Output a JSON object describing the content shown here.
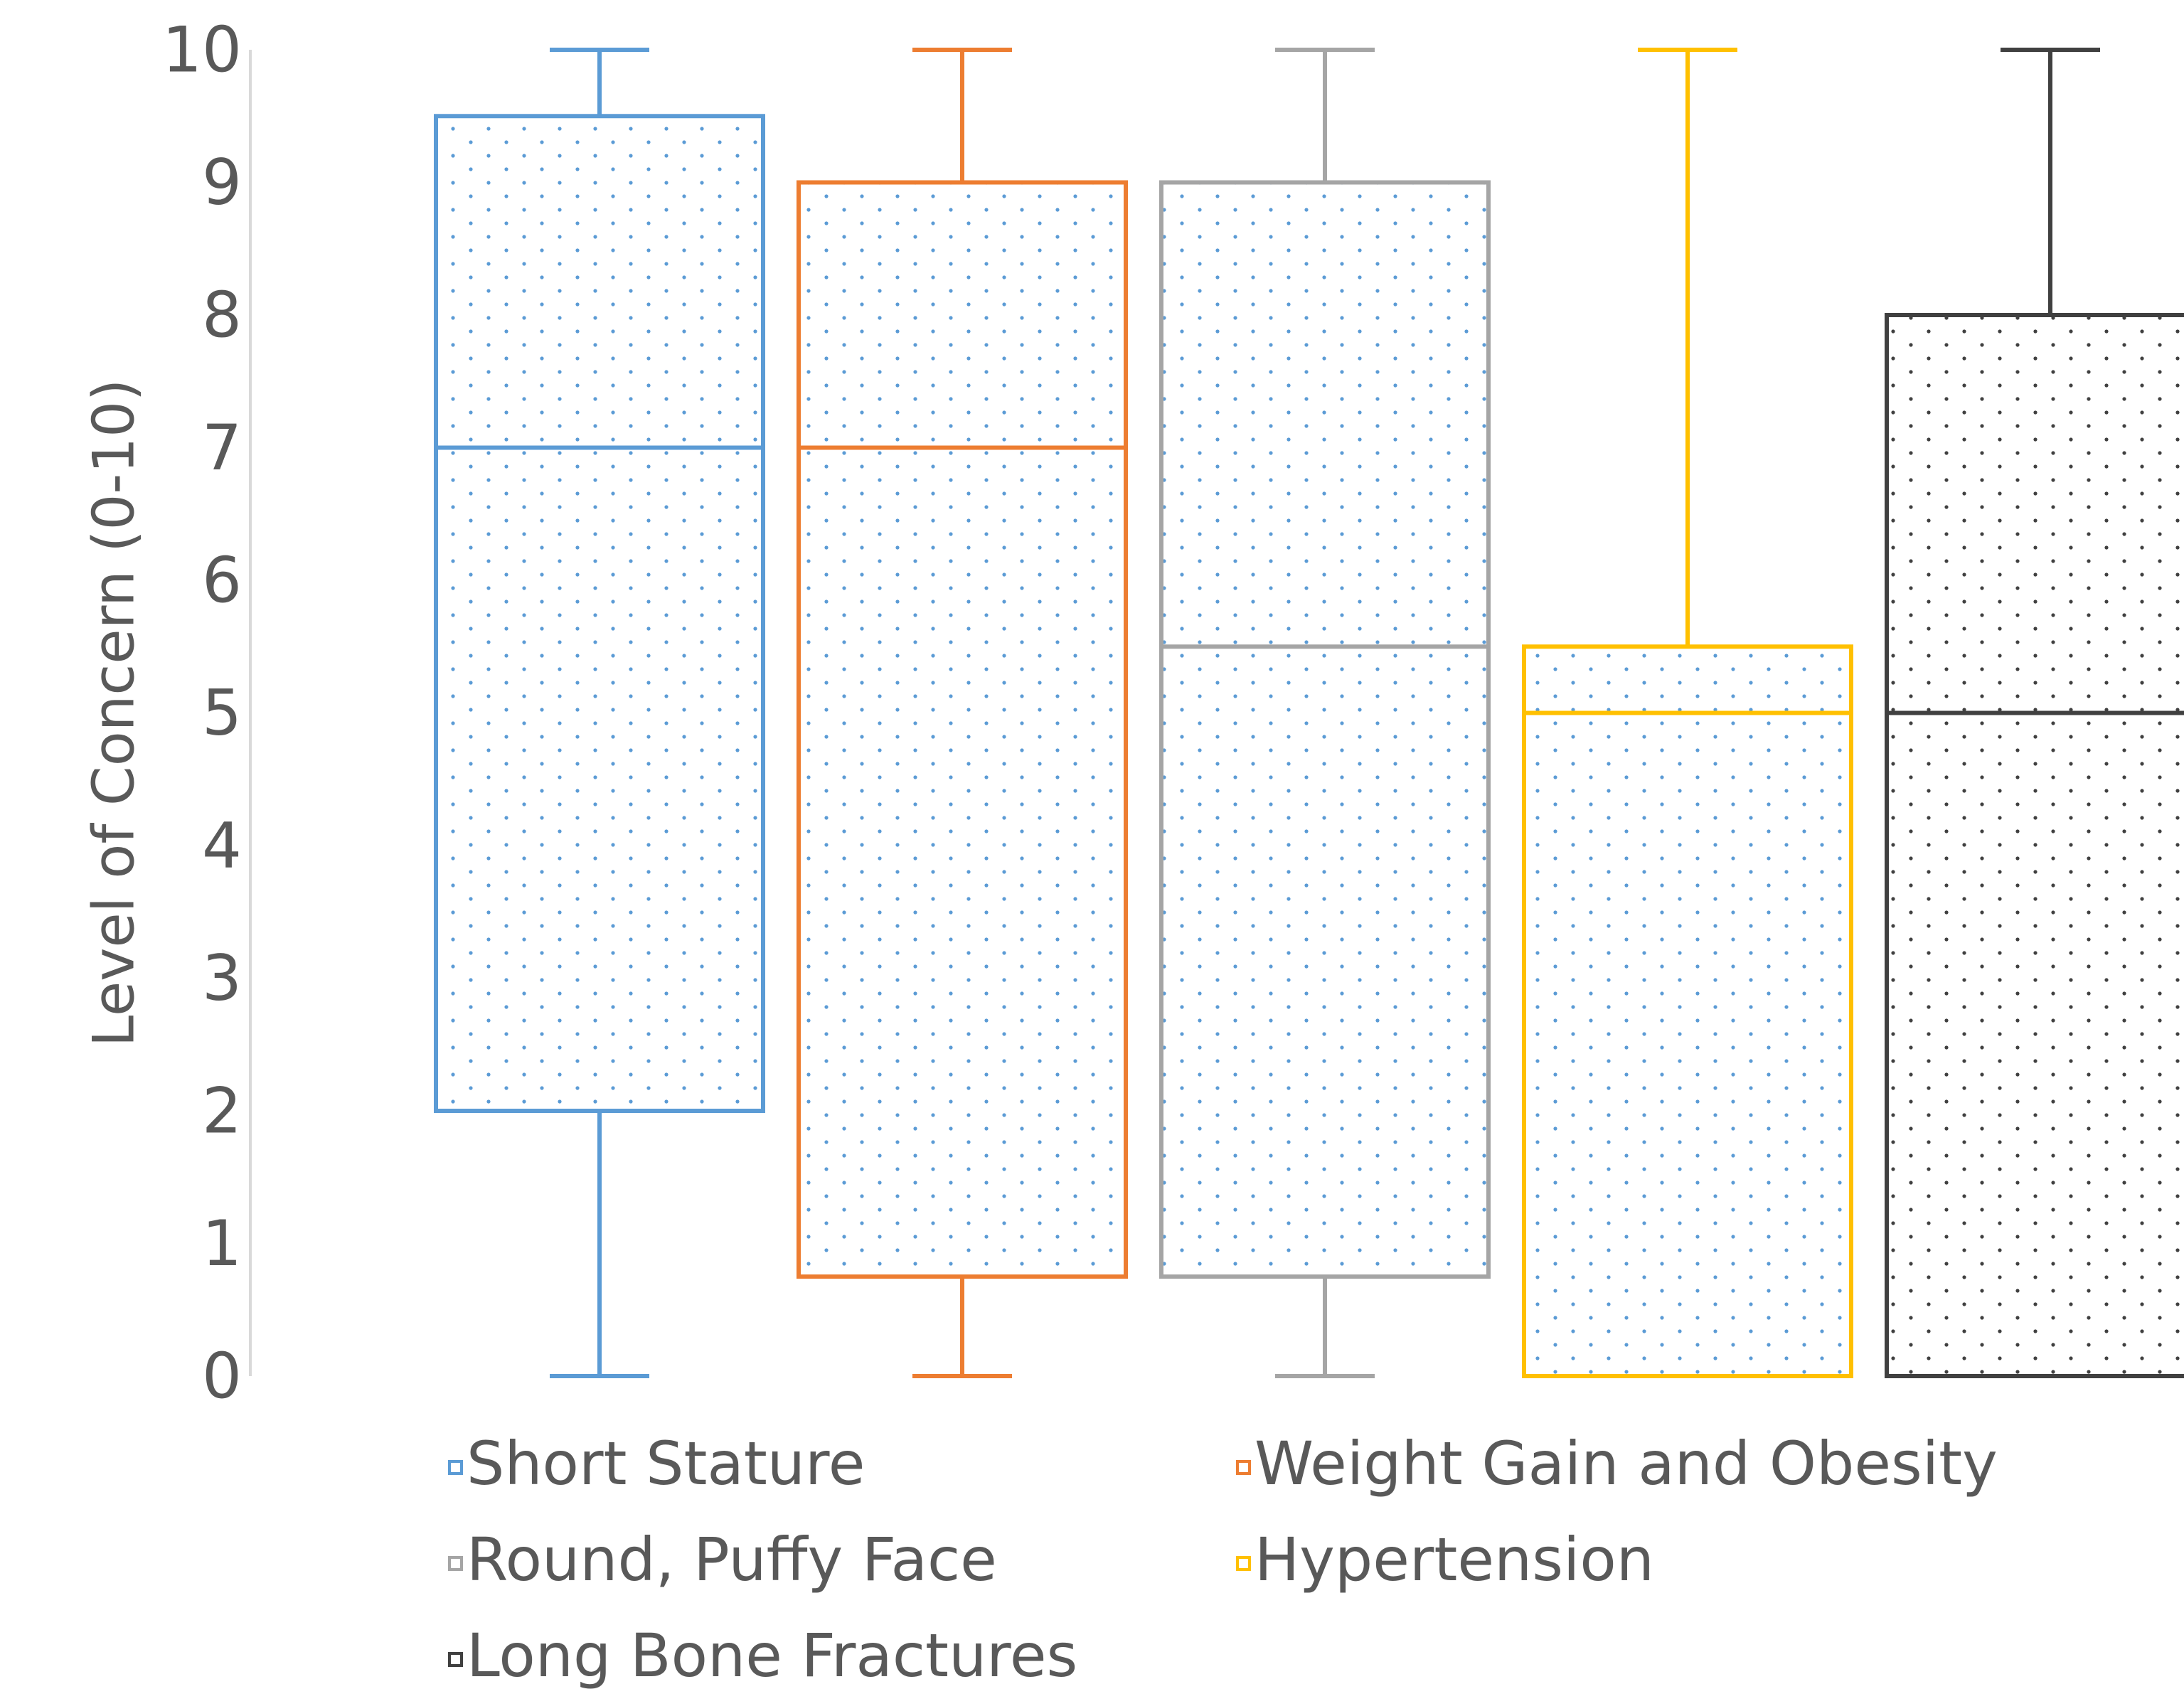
{
  "chart_data": {
    "type": "boxplot",
    "title": "",
    "xlabel": "",
    "ylabel": "Level of Concern (0-10)",
    "ylim": [
      0,
      10
    ],
    "yticks": [
      0,
      1,
      2,
      3,
      4,
      5,
      6,
      7,
      8,
      9,
      10
    ],
    "grid": false,
    "legend_position": "bottom",
    "series": [
      {
        "name": "Short Stature",
        "color": "#5B9BD5",
        "min": 0,
        "q1": 2,
        "median": 7,
        "q3": 9.5,
        "max": 10
      },
      {
        "name": "Weight Gain and Obesity",
        "color": "#ED7D31",
        "min": 0,
        "q1": 0.75,
        "median": 7,
        "q3": 9,
        "max": 10
      },
      {
        "name": "Round, Puffy Face",
        "color": "#A5A5A5",
        "min": 0,
        "q1": 0.75,
        "median": 5.5,
        "q3": 9,
        "max": 10
      },
      {
        "name": "Hypertension",
        "color": "#FFC000",
        "min": 0,
        "q1": 0,
        "median": 5,
        "q3": 5.5,
        "max": 10
      },
      {
        "name": "Long Bone Fractures",
        "color": "#404040",
        "min": 0,
        "q1": 0,
        "median": 5,
        "q3": 8,
        "max": 10
      }
    ],
    "fill_pattern": "dotted",
    "fill_dot_colors": [
      "#5B9BD5",
      "#5B9BD5",
      "#5B9BD5",
      "#5B9BD5",
      "#404040"
    ]
  }
}
